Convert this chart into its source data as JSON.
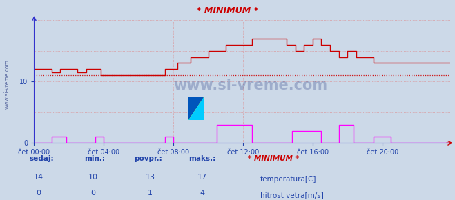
{
  "title": "* MINIMUM *",
  "bg_color": "#ccd9e8",
  "plot_bg_color": "#ccd9e8",
  "grid_color": "#e08080",
  "temp_color": "#cc0000",
  "wind_color": "#ff00ff",
  "axis_color": "#3333cc",
  "text_color": "#2244aa",
  "watermark_color": "#334488",
  "min_line_value": 11,
  "ylim": [
    0,
    20
  ],
  "xlim": [
    0,
    287
  ],
  "xtick_positions": [
    0,
    48,
    96,
    144,
    192,
    240
  ],
  "xtick_labels": [
    "čet 00:00",
    "čet 04:00",
    "čet 08:00",
    "čet 12:00",
    "čet 16:00",
    "čet 20:00"
  ],
  "ytick_positions": [
    0,
    5,
    10,
    15,
    20
  ],
  "ytick_labels": [
    "0",
    "",
    "10",
    "",
    ""
  ],
  "legend_temp_label": "temperatura[C]",
  "legend_wind_label": "hitrost vetra[m/s]",
  "stats_headers": [
    "sedaj:",
    "min.:",
    "povpr.:",
    "maks.:"
  ],
  "stats_temp": [
    "14",
    "10",
    "13",
    "17"
  ],
  "stats_wind": [
    "0",
    "0",
    "1",
    "4"
  ],
  "watermark": "www.si-vreme.com",
  "total_points": 288,
  "logo_yellow": "#ffff00",
  "logo_cyan": "#00ccff",
  "logo_blue": "#0055bb"
}
